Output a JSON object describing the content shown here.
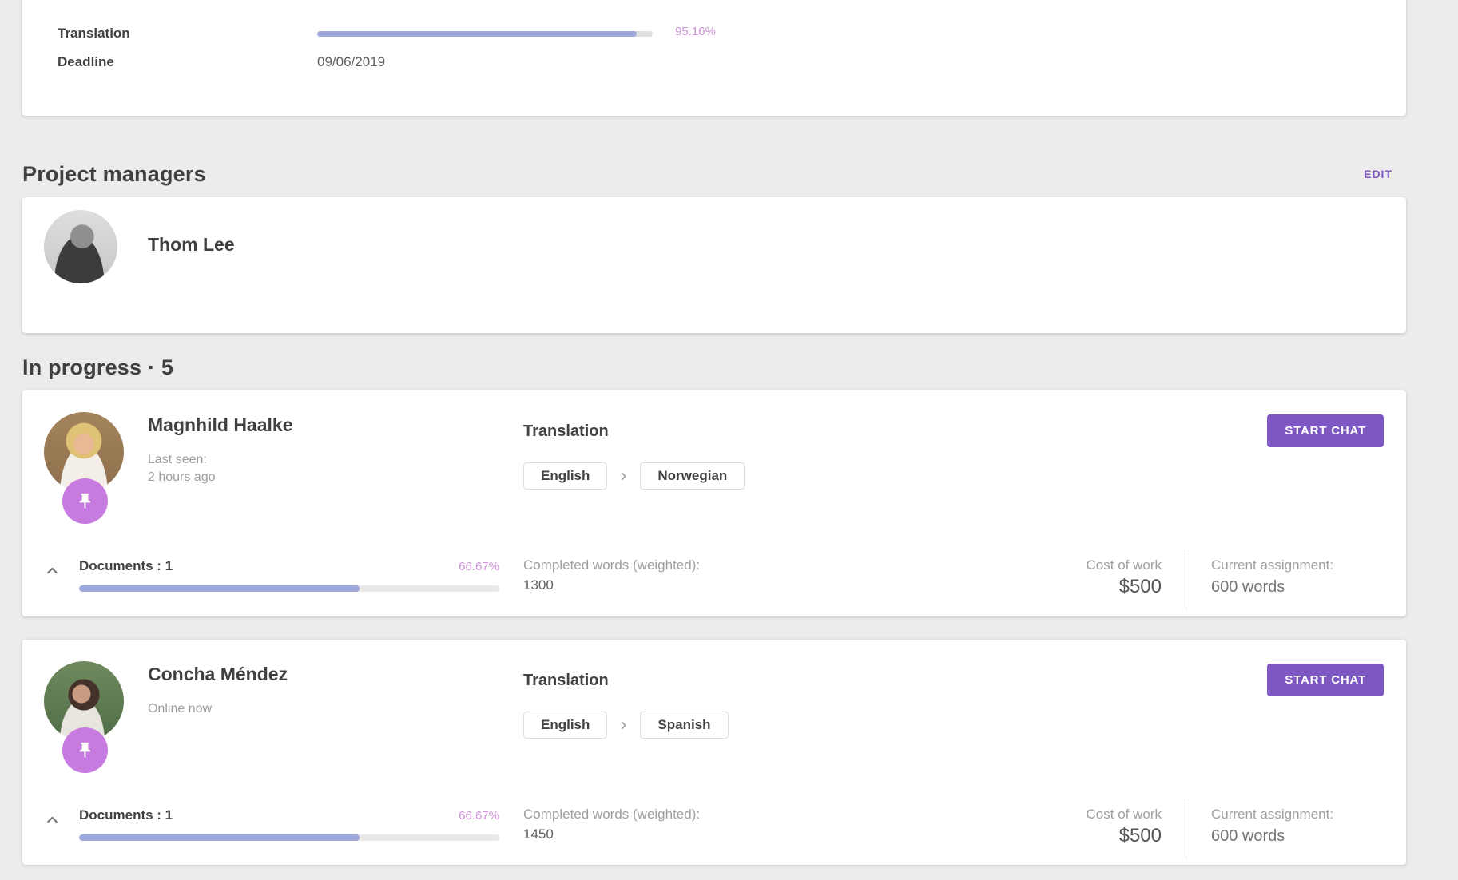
{
  "colors": {
    "accent_purple": "#7e57c2",
    "progress_fill": "#9fa8da",
    "percent_text": "#ce93d8",
    "pin_badge": "#c77be0",
    "page_background": "#ececec"
  },
  "summary_card": {
    "translation_label": "Translation",
    "translation_percent": "95.16%",
    "translation_value": 95.16,
    "deadline_label": "Deadline",
    "deadline_value": "09/06/2019"
  },
  "project_managers": {
    "title": "Project managers",
    "edit_label": "EDIT",
    "managers": [
      {
        "name": "Thom Lee"
      }
    ]
  },
  "in_progress": {
    "title": "In progress · 5",
    "assignees": [
      {
        "name": "Magnhild Haalke",
        "status_line_1": "Last seen:",
        "status_line_2": "2 hours ago",
        "job_title": "Translation",
        "source_language": "English",
        "target_language": "Norwegian",
        "chat_button_label": "START CHAT",
        "documents_label": "Documents : 1",
        "documents_percent": "66.67%",
        "documents_value": 66.67,
        "completed_words_label": "Completed words (weighted):",
        "completed_words_value": "1300",
        "cost_label": "Cost of work",
        "cost_value": "$500",
        "assignment_label": "Current assignment:",
        "assignment_value": "600 words"
      },
      {
        "name": "Concha Méndez",
        "status_line_1": "Online now",
        "status_line_2": "",
        "job_title": "Translation",
        "source_language": "English",
        "target_language": "Spanish",
        "chat_button_label": "START CHAT",
        "documents_label": "Documents : 1",
        "documents_percent": "66.67%",
        "documents_value": 66.67,
        "completed_words_label": "Completed words (weighted):",
        "completed_words_value": "1450",
        "cost_label": "Cost of work",
        "cost_value": "$500",
        "assignment_label": "Current assignment:",
        "assignment_value": "600 words"
      }
    ]
  }
}
